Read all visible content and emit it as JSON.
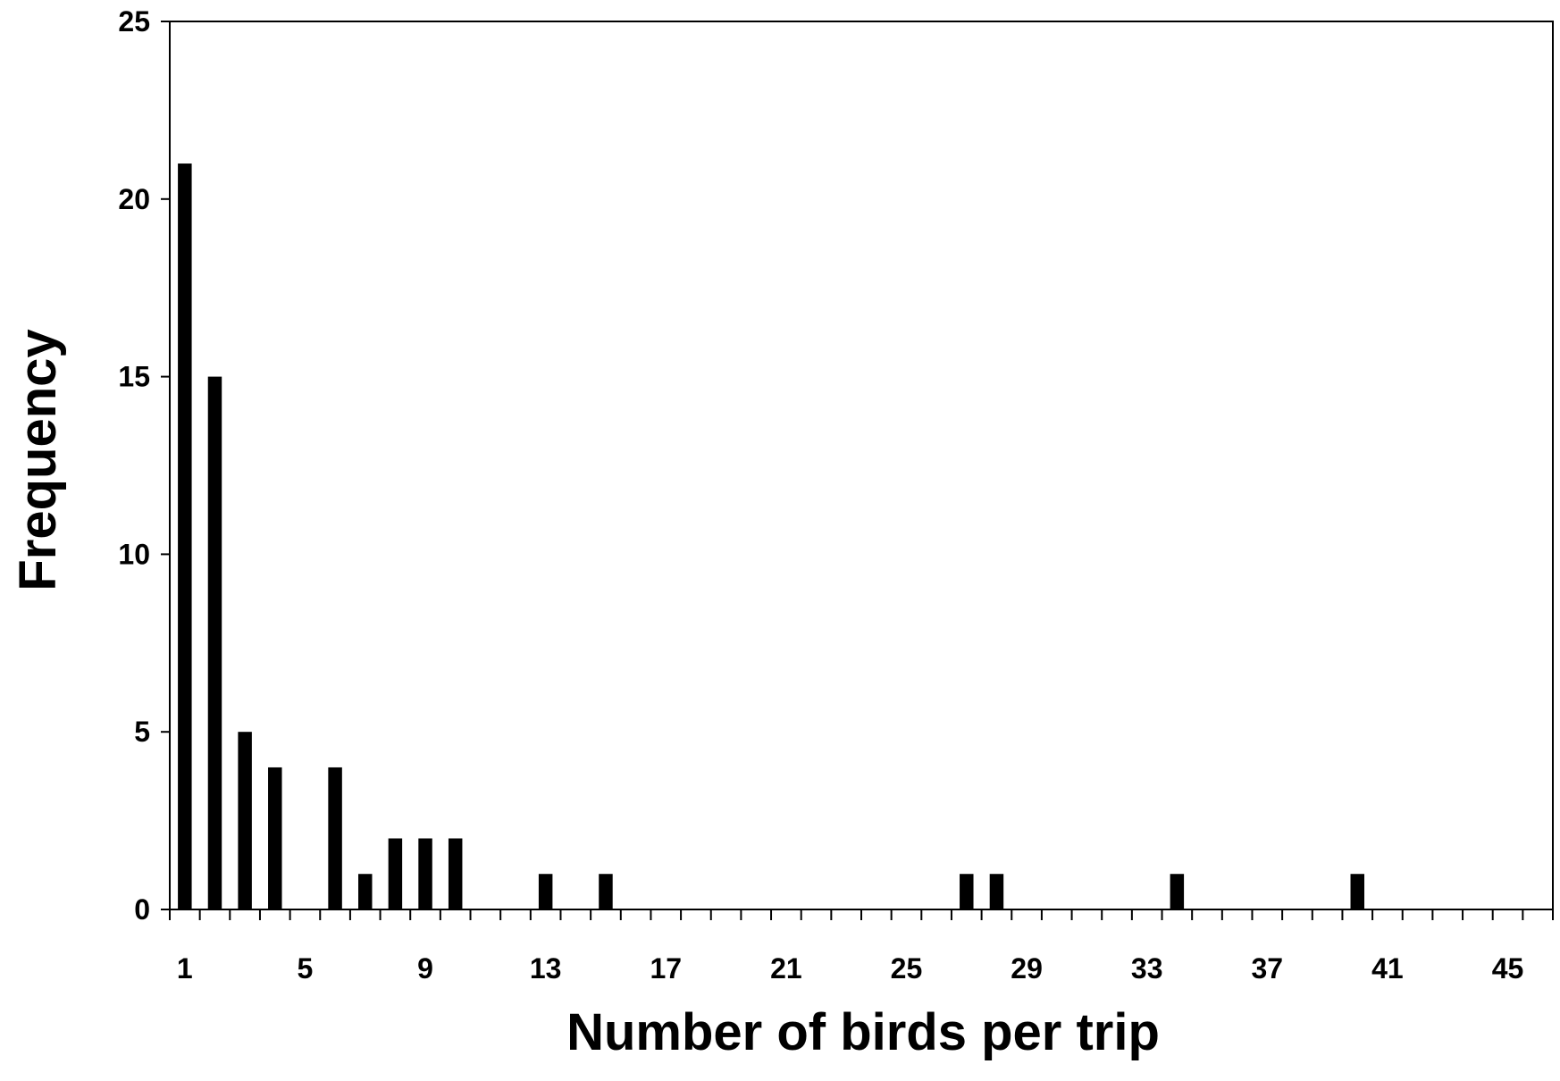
{
  "chart_data": {
    "type": "bar",
    "title": "",
    "xlabel": "Number of birds per trip",
    "ylabel": "Frequency",
    "ylim": [
      0,
      25
    ],
    "yticks": [
      0,
      5,
      10,
      15,
      20,
      25
    ],
    "xlim": [
      1,
      46
    ],
    "xtick_labels": [
      1,
      5,
      9,
      13,
      17,
      21,
      25,
      29,
      33,
      37,
      41,
      45
    ],
    "grid": false,
    "legend": "none",
    "bar_color": "#000000",
    "x": [
      1,
      2,
      3,
      4,
      6,
      7,
      8,
      9,
      10,
      13,
      15,
      27,
      28,
      34,
      40
    ],
    "values": [
      21,
      15,
      5,
      4,
      4,
      1,
      2,
      2,
      2,
      1,
      1,
      1,
      1,
      1,
      1
    ]
  }
}
